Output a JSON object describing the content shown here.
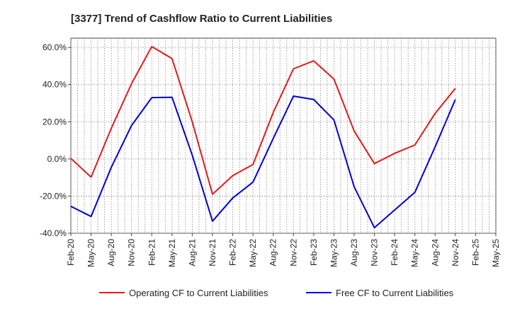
{
  "chart_data": {
    "type": "line",
    "title": "[3377]  Trend of Cashflow Ratio to Current Liabilities",
    "xlabel": "",
    "ylabel": "",
    "categories": [
      "Feb-20",
      "May-20",
      "Aug-20",
      "Nov-20",
      "Feb-21",
      "May-21",
      "Aug-21",
      "Nov-21",
      "Feb-22",
      "May-22",
      "Aug-22",
      "Nov-22",
      "Feb-23",
      "May-23",
      "Aug-23",
      "Nov-23",
      "Feb-24",
      "May-24",
      "Aug-24",
      "Nov-24",
      "Feb-25",
      "May-25"
    ],
    "y_ticks": [
      "-40.0%",
      "-20.0%",
      "0.0%",
      "20.0%",
      "40.0%",
      "60.0%"
    ],
    "ylim": [
      -40,
      65
    ],
    "grid": true,
    "legend_position": "bottom",
    "series": [
      {
        "name": "Operating CF to Current Liabilities",
        "color": "#e41a1c",
        "values": [
          0.3,
          -9.8,
          16.5,
          40.5,
          60.5,
          54.0,
          20.0,
          -19.0,
          -9.0,
          -3.0,
          25.0,
          48.5,
          52.8,
          43.0,
          15.0,
          -2.5,
          3.0,
          7.5,
          24.5,
          38.0,
          null,
          null
        ]
      },
      {
        "name": "Free CF to Current Liabilities",
        "color": "#0000dd",
        "values": [
          -25.5,
          -31.0,
          -4.5,
          18.0,
          33.0,
          33.2,
          2.0,
          -33.5,
          -21.0,
          -12.5,
          11.0,
          33.8,
          32.0,
          21.0,
          -15.0,
          -37.0,
          -27.5,
          -18.0,
          6.5,
          32.0,
          null,
          null
        ]
      }
    ]
  }
}
